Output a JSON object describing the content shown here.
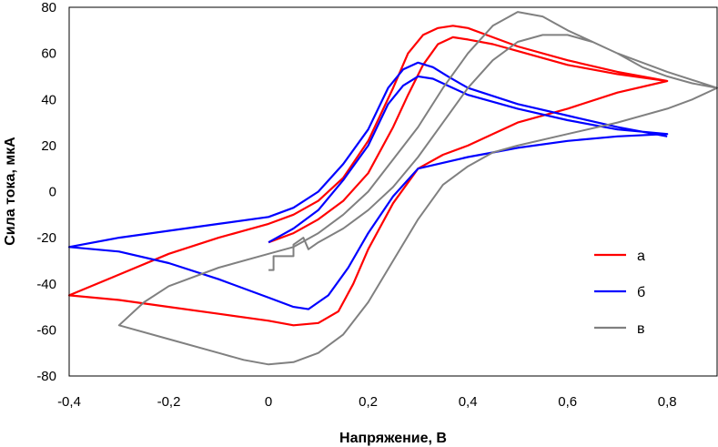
{
  "chart_data": {
    "type": "line",
    "title": "",
    "xlabel": "Напряжение, В",
    "ylabel": "Сила тока, мкА",
    "xlim": [
      -0.4,
      0.9
    ],
    "ylim": [
      -80,
      80
    ],
    "x_ticks": [
      -0.4,
      -0.2,
      0,
      0.2,
      0.4,
      0.6,
      0.8
    ],
    "y_ticks": [
      -80,
      -60,
      -40,
      -20,
      0,
      20,
      40,
      60,
      80
    ],
    "x_tick_labels": [
      "-0,4",
      "-0,2",
      "0",
      "0,2",
      "0,4",
      "0,6",
      "0,8"
    ],
    "y_tick_labels": [
      "-80",
      "-60",
      "-40",
      "-20",
      "0",
      "20",
      "40",
      "60",
      "80"
    ],
    "grid": false,
    "legend_position": "right",
    "series": [
      {
        "name": "а",
        "color": "#ff0000",
        "paths": [
          [
            [
              0.0,
              -22
            ],
            [
              0.05,
              -18
            ],
            [
              0.1,
              -12
            ],
            [
              0.15,
              -4
            ],
            [
              0.2,
              8
            ],
            [
              0.25,
              28
            ],
            [
              0.28,
              42
            ],
            [
              0.31,
              55
            ],
            [
              0.34,
              64
            ],
            [
              0.37,
              67
            ],
            [
              0.4,
              66
            ],
            [
              0.45,
              64
            ],
            [
              0.5,
              61
            ],
            [
              0.6,
              55
            ],
            [
              0.7,
              51
            ],
            [
              0.8,
              48
            ],
            [
              0.7,
              43
            ],
            [
              0.6,
              36
            ],
            [
              0.5,
              30
            ],
            [
              0.45,
              25
            ],
            [
              0.4,
              20
            ],
            [
              0.35,
              16
            ],
            [
              0.3,
              10
            ],
            [
              0.25,
              -5
            ],
            [
              0.2,
              -25
            ],
            [
              0.17,
              -40
            ],
            [
              0.14,
              -52
            ],
            [
              0.1,
              -57
            ],
            [
              0.05,
              -58
            ],
            [
              0.0,
              -56
            ],
            [
              -0.1,
              -53
            ],
            [
              -0.2,
              -50
            ],
            [
              -0.3,
              -47
            ],
            [
              -0.4,
              -45
            ],
            [
              -0.3,
              -36
            ],
            [
              -0.2,
              -27
            ],
            [
              -0.1,
              -20
            ],
            [
              0.0,
              -14
            ],
            [
              0.05,
              -10
            ],
            [
              0.1,
              -4
            ],
            [
              0.15,
              6
            ],
            [
              0.2,
              22
            ],
            [
              0.25,
              45
            ],
            [
              0.28,
              60
            ],
            [
              0.31,
              68
            ],
            [
              0.34,
              71
            ],
            [
              0.37,
              72
            ],
            [
              0.4,
              71
            ],
            [
              0.45,
              67
            ],
            [
              0.5,
              63
            ],
            [
              0.6,
              57
            ],
            [
              0.7,
              52
            ],
            [
              0.8,
              48
            ]
          ]
        ]
      },
      {
        "name": "б",
        "color": "#0000ff",
        "paths": [
          [
            [
              0.0,
              -22
            ],
            [
              0.05,
              -16
            ],
            [
              0.1,
              -8
            ],
            [
              0.15,
              5
            ],
            [
              0.2,
              20
            ],
            [
              0.24,
              38
            ],
            [
              0.27,
              46
            ],
            [
              0.3,
              50
            ],
            [
              0.33,
              49
            ],
            [
              0.36,
              46
            ],
            [
              0.4,
              42
            ],
            [
              0.5,
              36
            ],
            [
              0.6,
              31
            ],
            [
              0.7,
              27
            ],
            [
              0.8,
              25
            ],
            [
              0.7,
              24
            ],
            [
              0.6,
              22
            ],
            [
              0.5,
              19
            ],
            [
              0.45,
              17
            ],
            [
              0.4,
              15
            ],
            [
              0.3,
              10
            ],
            [
              0.25,
              -2
            ],
            [
              0.2,
              -18
            ],
            [
              0.16,
              -33
            ],
            [
              0.12,
              -45
            ],
            [
              0.08,
              -51
            ],
            [
              0.05,
              -50
            ],
            [
              0.0,
              -46
            ],
            [
              -0.1,
              -38
            ],
            [
              -0.2,
              -31
            ],
            [
              -0.3,
              -26
            ],
            [
              -0.4,
              -24
            ],
            [
              -0.3,
              -20
            ],
            [
              -0.2,
              -17
            ],
            [
              -0.1,
              -14
            ],
            [
              0.0,
              -11
            ],
            [
              0.05,
              -7
            ],
            [
              0.1,
              0
            ],
            [
              0.15,
              12
            ],
            [
              0.2,
              27
            ],
            [
              0.24,
              45
            ],
            [
              0.27,
              53
            ],
            [
              0.3,
              56
            ],
            [
              0.33,
              54
            ],
            [
              0.36,
              50
            ],
            [
              0.4,
              45
            ],
            [
              0.5,
              38
            ],
            [
              0.6,
              33
            ],
            [
              0.7,
              28
            ],
            [
              0.8,
              24
            ]
          ]
        ]
      },
      {
        "name": "в",
        "color": "#808080",
        "paths": [
          [
            [
              0.0,
              -34
            ],
            [
              0.01,
              -34
            ],
            [
              0.01,
              -28
            ],
            [
              0.05,
              -28
            ],
            [
              0.05,
              -23
            ],
            [
              0.07,
              -20
            ],
            [
              0.08,
              -25
            ],
            [
              0.1,
              -22
            ],
            [
              0.15,
              -16
            ],
            [
              0.2,
              -8
            ],
            [
              0.25,
              2
            ],
            [
              0.3,
              15
            ],
            [
              0.35,
              30
            ],
            [
              0.4,
              45
            ],
            [
              0.45,
              57
            ],
            [
              0.5,
              65
            ],
            [
              0.55,
              68
            ],
            [
              0.6,
              68
            ],
            [
              0.65,
              65
            ],
            [
              0.7,
              60
            ],
            [
              0.75,
              54
            ],
            [
              0.8,
              50
            ],
            [
              0.85,
              47
            ],
            [
              0.9,
              45
            ],
            [
              0.85,
              40
            ],
            [
              0.8,
              36
            ],
            [
              0.7,
              30
            ],
            [
              0.6,
              25
            ],
            [
              0.5,
              20
            ],
            [
              0.45,
              17
            ],
            [
              0.4,
              11
            ],
            [
              0.35,
              3
            ],
            [
              0.3,
              -12
            ],
            [
              0.25,
              -30
            ],
            [
              0.2,
              -48
            ],
            [
              0.15,
              -62
            ],
            [
              0.1,
              -70
            ],
            [
              0.05,
              -74
            ],
            [
              0.0,
              -75
            ],
            [
              -0.05,
              -73
            ],
            [
              -0.1,
              -70
            ],
            [
              -0.2,
              -64
            ],
            [
              -0.3,
              -58
            ],
            [
              -0.25,
              -48
            ],
            [
              -0.2,
              -41
            ],
            [
              -0.1,
              -33
            ],
            [
              0.0,
              -27
            ],
            [
              0.05,
              -24
            ],
            [
              0.1,
              -18
            ],
            [
              0.15,
              -10
            ],
            [
              0.2,
              0
            ],
            [
              0.25,
              14
            ],
            [
              0.3,
              28
            ],
            [
              0.35,
              45
            ],
            [
              0.4,
              60
            ],
            [
              0.45,
              72
            ],
            [
              0.5,
              78
            ],
            [
              0.55,
              76
            ],
            [
              0.6,
              70
            ],
            [
              0.7,
              60
            ],
            [
              0.8,
              52
            ],
            [
              0.9,
              45
            ]
          ]
        ]
      }
    ]
  }
}
